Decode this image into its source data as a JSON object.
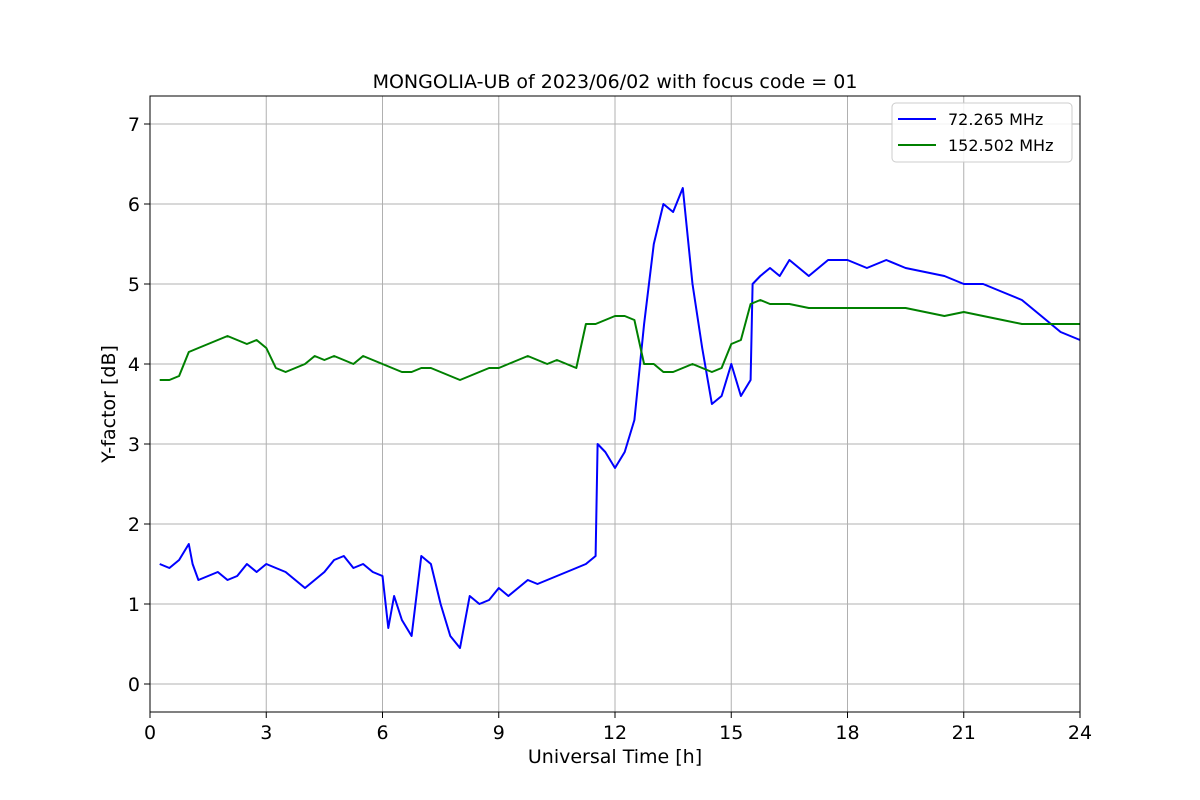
{
  "chart_data": {
    "type": "line",
    "title": "MONGOLIA-UB of 2023/06/02 with focus code = 01",
    "xlabel": "Universal Time [h]",
    "ylabel": "Y-factor [dB]",
    "xlim": [
      0,
      24
    ],
    "ylim": [
      -0.35,
      7.35
    ],
    "xticks": [
      0,
      3,
      6,
      9,
      12,
      15,
      18,
      21,
      24
    ],
    "yticks": [
      0,
      1,
      2,
      3,
      4,
      5,
      6,
      7
    ],
    "grid": true,
    "legend_position": "top-right",
    "series": [
      {
        "name": "72.265 MHz",
        "color": "#0000ff",
        "x": [
          0.25,
          0.5,
          0.75,
          1.0,
          1.1,
          1.25,
          1.5,
          1.75,
          2.0,
          2.25,
          2.5,
          2.75,
          3.0,
          3.25,
          3.5,
          3.75,
          4.0,
          4.25,
          4.5,
          4.75,
          5.0,
          5.25,
          5.5,
          5.75,
          6.0,
          6.15,
          6.3,
          6.5,
          6.75,
          7.0,
          7.25,
          7.5,
          7.75,
          8.0,
          8.25,
          8.5,
          8.75,
          9.0,
          9.25,
          9.5,
          9.75,
          10.0,
          10.25,
          10.5,
          10.75,
          11.0,
          11.25,
          11.5,
          11.55,
          11.75,
          12.0,
          12.25,
          12.5,
          12.75,
          13.0,
          13.25,
          13.5,
          13.75,
          14.0,
          14.25,
          14.5,
          14.75,
          15.0,
          15.25,
          15.5,
          15.55,
          15.75,
          16.0,
          16.25,
          16.5,
          16.75,
          17.0,
          17.5,
          18.0,
          18.5,
          19.0,
          19.5,
          20.0,
          20.5,
          21.0,
          21.5,
          22.0,
          22.5,
          23.0,
          23.5,
          24.0
        ],
        "values": [
          1.5,
          1.45,
          1.55,
          1.75,
          1.5,
          1.3,
          1.35,
          1.4,
          1.3,
          1.35,
          1.5,
          1.4,
          1.5,
          1.45,
          1.4,
          1.3,
          1.2,
          1.3,
          1.4,
          1.55,
          1.6,
          1.45,
          1.5,
          1.4,
          1.35,
          0.7,
          1.1,
          0.8,
          0.6,
          1.6,
          1.5,
          1.0,
          0.6,
          0.45,
          1.1,
          1.0,
          1.05,
          1.2,
          1.1,
          1.2,
          1.3,
          1.25,
          1.3,
          1.35,
          1.4,
          1.45,
          1.5,
          1.6,
          3.0,
          2.9,
          2.7,
          2.9,
          3.3,
          4.5,
          5.5,
          6.0,
          5.9,
          6.2,
          5.0,
          4.2,
          3.5,
          3.6,
          4.0,
          3.6,
          3.8,
          5.0,
          5.1,
          5.2,
          5.1,
          5.3,
          5.2,
          5.1,
          5.3,
          5.3,
          5.2,
          5.3,
          5.2,
          5.15,
          5.1,
          5.0,
          5.0,
          4.9,
          4.8,
          4.6,
          4.4,
          4.3
        ]
      },
      {
        "name": "152.502 MHz",
        "color": "#008000",
        "x": [
          0.25,
          0.5,
          0.75,
          1.0,
          1.25,
          1.5,
          1.75,
          2.0,
          2.25,
          2.5,
          2.75,
          3.0,
          3.25,
          3.5,
          3.75,
          4.0,
          4.25,
          4.5,
          4.75,
          5.0,
          5.25,
          5.5,
          5.75,
          6.0,
          6.25,
          6.5,
          6.75,
          7.0,
          7.25,
          7.5,
          7.75,
          8.0,
          8.25,
          8.5,
          8.75,
          9.0,
          9.25,
          9.5,
          9.75,
          10.0,
          10.25,
          10.5,
          10.75,
          11.0,
          11.25,
          11.5,
          11.75,
          12.0,
          12.25,
          12.5,
          12.75,
          13.0,
          13.25,
          13.5,
          13.75,
          14.0,
          14.25,
          14.5,
          14.75,
          15.0,
          15.25,
          15.5,
          15.75,
          16.0,
          16.5,
          17.0,
          17.5,
          18.0,
          18.5,
          19.0,
          19.5,
          20.0,
          20.5,
          21.0,
          21.5,
          22.0,
          22.5,
          23.0,
          23.5,
          24.0
        ],
        "values": [
          3.8,
          3.8,
          3.85,
          4.15,
          4.2,
          4.25,
          4.3,
          4.35,
          4.3,
          4.25,
          4.3,
          4.2,
          3.95,
          3.9,
          3.95,
          4.0,
          4.1,
          4.05,
          4.1,
          4.05,
          4.0,
          4.1,
          4.05,
          4.0,
          3.95,
          3.9,
          3.9,
          3.95,
          3.95,
          3.9,
          3.85,
          3.8,
          3.85,
          3.9,
          3.95,
          3.95,
          4.0,
          4.05,
          4.1,
          4.05,
          4.0,
          4.05,
          4.0,
          3.95,
          4.5,
          4.5,
          4.55,
          4.6,
          4.6,
          4.55,
          4.0,
          4.0,
          3.9,
          3.9,
          3.95,
          4.0,
          3.95,
          3.9,
          3.95,
          4.25,
          4.3,
          4.75,
          4.8,
          4.75,
          4.75,
          4.7,
          4.7,
          4.7,
          4.7,
          4.7,
          4.7,
          4.65,
          4.6,
          4.65,
          4.6,
          4.55,
          4.5,
          4.5,
          4.5,
          4.5
        ]
      }
    ]
  }
}
